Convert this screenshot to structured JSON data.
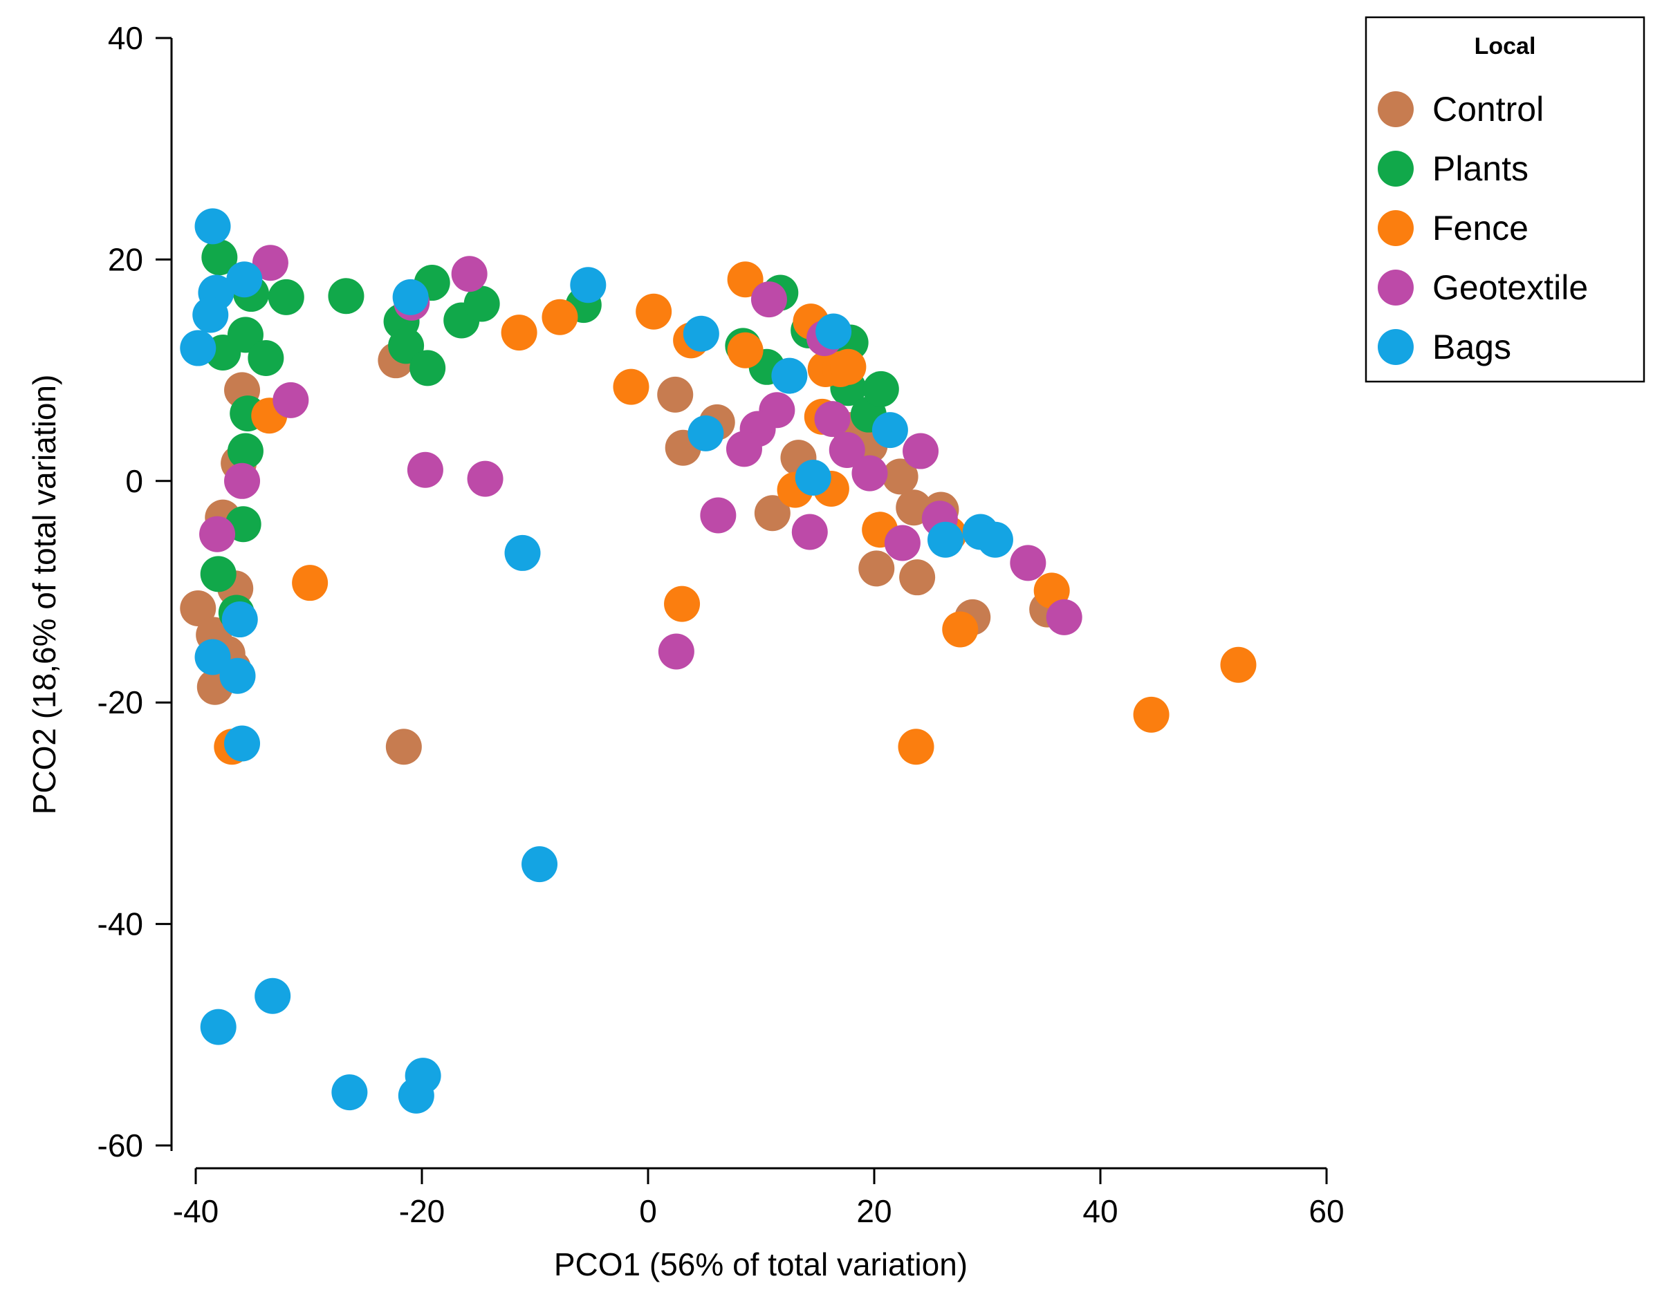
{
  "chart_data": {
    "type": "scatter",
    "title": "",
    "xlabel": "PCO1 (56% of total variation)",
    "ylabel": "PCO2 (18,6% of total variation)",
    "xlim": [
      -40,
      60
    ],
    "ylim": [
      -60,
      40
    ],
    "xticks": [
      -40,
      -20,
      0,
      20,
      40,
      60
    ],
    "yticks": [
      40,
      20,
      0,
      -20,
      -40,
      -60
    ],
    "xtick_labels": [
      "-40",
      "-20",
      "0",
      "20",
      "40",
      "60"
    ],
    "ytick_labels": [
      "40",
      "20",
      "0",
      "-20",
      "-40",
      "-60"
    ],
    "legend": {
      "title": "Local",
      "position": "top-right"
    },
    "series": [
      {
        "name": "Control",
        "color": "#c77c50",
        "points": [
          [
            -35.9,
            8.2
          ],
          [
            -36.2,
            1.6
          ],
          [
            -37.6,
            -3.3
          ],
          [
            -36.5,
            -9.7
          ],
          [
            -39.8,
            -11.5
          ],
          [
            -38.4,
            -13.9
          ],
          [
            -37.2,
            -15.6
          ],
          [
            -36.7,
            -16.9
          ],
          [
            -38.3,
            -18.6
          ],
          [
            -22.3,
            10.9
          ],
          [
            -21.6,
            -24.0
          ],
          [
            2.4,
            7.8
          ],
          [
            3.1,
            3.0
          ],
          [
            6.1,
            5.3
          ],
          [
            11.0,
            -2.9
          ],
          [
            13.3,
            2.1
          ],
          [
            17.9,
            4.6
          ],
          [
            19.6,
            3.2
          ],
          [
            20.2,
            -7.9
          ],
          [
            22.3,
            0.4
          ],
          [
            23.8,
            -8.7
          ],
          [
            23.5,
            -2.4
          ],
          [
            25.9,
            -2.6
          ],
          [
            28.7,
            -12.3
          ],
          [
            35.3,
            -11.6
          ]
        ]
      },
      {
        "name": "Plants",
        "color": "#11a84a",
        "points": [
          [
            -37.9,
            20.2
          ],
          [
            -35.1,
            16.9
          ],
          [
            -32.0,
            16.6
          ],
          [
            -26.7,
            16.7
          ],
          [
            -21.8,
            14.4
          ],
          [
            -21.4,
            12.2
          ],
          [
            -19.5,
            10.2
          ],
          [
            -19.1,
            17.9
          ],
          [
            -16.5,
            14.5
          ],
          [
            -14.7,
            16.0
          ],
          [
            -5.7,
            15.9
          ],
          [
            -37.6,
            11.6
          ],
          [
            -35.6,
            13.2
          ],
          [
            -33.8,
            11.1
          ],
          [
            -35.4,
            6.1
          ],
          [
            -35.6,
            2.7
          ],
          [
            -35.8,
            -3.9
          ],
          [
            -38.0,
            -8.4
          ],
          [
            -36.4,
            -11.9
          ],
          [
            8.4,
            12.2
          ],
          [
            10.5,
            10.3
          ],
          [
            11.7,
            17.0
          ],
          [
            14.2,
            13.6
          ],
          [
            17.9,
            12.5
          ],
          [
            17.7,
            8.4
          ],
          [
            19.5,
            6.0
          ],
          [
            20.6,
            8.3
          ]
        ]
      },
      {
        "name": "Fence",
        "color": "#fb7e0f",
        "points": [
          [
            -33.5,
            5.9
          ],
          [
            -29.9,
            -9.2
          ],
          [
            -36.8,
            -24.0
          ],
          [
            -11.4,
            13.4
          ],
          [
            -7.8,
            14.8
          ],
          [
            0.5,
            15.3
          ],
          [
            -1.5,
            8.5
          ],
          [
            3.8,
            12.7
          ],
          [
            3.0,
            -11.1
          ],
          [
            8.6,
            18.2
          ],
          [
            8.6,
            11.8
          ],
          [
            14.4,
            14.4
          ],
          [
            15.7,
            10.1
          ],
          [
            17.0,
            10.1
          ],
          [
            17.7,
            10.3
          ],
          [
            15.4,
            5.8
          ],
          [
            13.0,
            -0.8
          ],
          [
            16.2,
            -0.7
          ],
          [
            20.5,
            -4.4
          ],
          [
            26.6,
            -4.8
          ],
          [
            27.6,
            -13.4
          ],
          [
            23.7,
            -24.0
          ],
          [
            35.7,
            -9.9
          ],
          [
            44.5,
            -21.1
          ],
          [
            52.2,
            -16.6
          ]
        ]
      },
      {
        "name": "Geotextile",
        "color": "#bd4aa8",
        "points": [
          [
            -33.4,
            19.7
          ],
          [
            -20.9,
            16.1
          ],
          [
            -15.8,
            18.7
          ],
          [
            -31.6,
            7.3
          ],
          [
            -19.7,
            1.0
          ],
          [
            -14.4,
            0.2
          ],
          [
            -35.9,
            0.0
          ],
          [
            -38.1,
            -4.8
          ],
          [
            10.7,
            16.4
          ],
          [
            15.6,
            12.9
          ],
          [
            11.4,
            6.4
          ],
          [
            9.7,
            4.7
          ],
          [
            8.5,
            2.9
          ],
          [
            16.3,
            5.6
          ],
          [
            17.6,
            2.8
          ],
          [
            19.6,
            0.7
          ],
          [
            24.1,
            2.7
          ],
          [
            6.2,
            -3.1
          ],
          [
            14.3,
            -4.6
          ],
          [
            22.5,
            -5.6
          ],
          [
            25.8,
            -3.4
          ],
          [
            2.5,
            -15.4
          ],
          [
            33.6,
            -7.4
          ],
          [
            36.8,
            -12.3
          ]
        ]
      },
      {
        "name": "Bags",
        "color": "#14a4e3",
        "points": [
          [
            -38.5,
            23.0
          ],
          [
            -38.2,
            17.0
          ],
          [
            -35.7,
            18.2
          ],
          [
            -38.7,
            15.0
          ],
          [
            -39.8,
            12.0
          ],
          [
            -21.0,
            16.6
          ],
          [
            -5.3,
            17.7
          ],
          [
            4.7,
            13.3
          ],
          [
            5.1,
            4.3
          ],
          [
            12.5,
            9.5
          ],
          [
            16.4,
            13.5
          ],
          [
            14.6,
            0.3
          ],
          [
            21.4,
            4.6
          ],
          [
            26.3,
            -5.3
          ],
          [
            29.4,
            -4.6
          ],
          [
            30.7,
            -5.3
          ],
          [
            -11.1,
            -6.5
          ],
          [
            -36.1,
            -12.5
          ],
          [
            -38.5,
            -15.9
          ],
          [
            -36.3,
            -17.6
          ],
          [
            -35.9,
            -23.7
          ],
          [
            -9.6,
            -34.6
          ],
          [
            -38.0,
            -49.3
          ],
          [
            -33.2,
            -46.5
          ],
          [
            -26.4,
            -55.2
          ],
          [
            -20.5,
            -55.5
          ],
          [
            -19.9,
            -53.7
          ]
        ]
      }
    ]
  }
}
